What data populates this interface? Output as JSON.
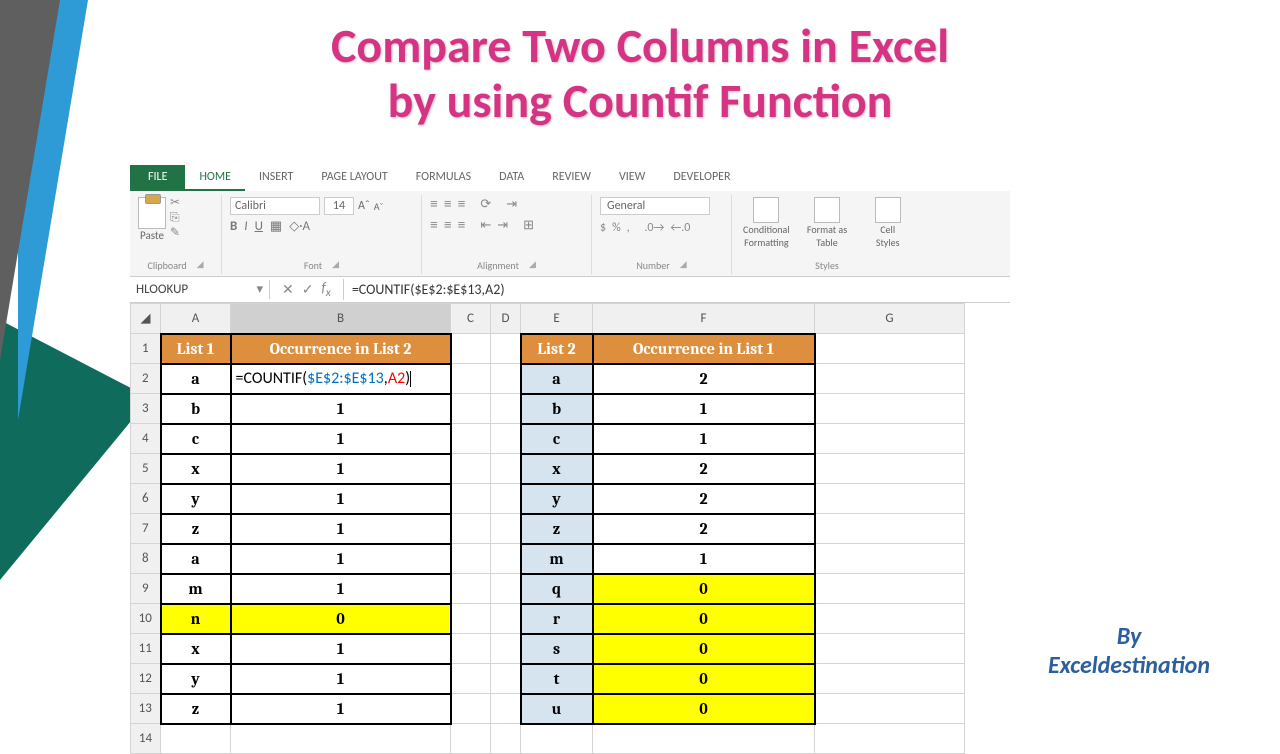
{
  "title_line1": "Compare Two Columns in Excel",
  "title_line2": "by using Countif Function",
  "byline1": "By",
  "byline2": "Exceldestination",
  "tabs": {
    "file": "FILE",
    "home": "HOME",
    "insert": "INSERT",
    "pagelayout": "PAGE LAYOUT",
    "formulas": "FORMULAS",
    "data": "DATA",
    "review": "REVIEW",
    "view": "VIEW",
    "developer": "DEVELOPER"
  },
  "ribbon": {
    "paste": "Paste",
    "clipboard": "Clipboard",
    "font_name": "Calibri",
    "font_size": "14",
    "font_group": "Font",
    "align_group": "Alignment",
    "number_format": "General",
    "number_group": "Number",
    "cond": "Conditional",
    "cond2": "Formatting",
    "fmt": "Format as",
    "fmt2": "Table",
    "cell": "Cell",
    "cell2": "Styles",
    "styles_group": "Styles"
  },
  "namebox": "HLOOKUP",
  "formula": "=COUNTIF($E$2:$E$13,A2)",
  "cols": [
    "A",
    "B",
    "C",
    "D",
    "E",
    "F",
    "G"
  ],
  "headers": {
    "list1": "List 1",
    "occ2": "Occurrence in List 2",
    "list2": "List 2",
    "occ1": "Occurrence in List 1"
  },
  "edit_formula": {
    "prefix": "=COUNTIF(",
    "range": "$E$2:$E$13",
    "comma": ",",
    "arg": "A2",
    "suffix": ")"
  },
  "table1": [
    {
      "r": 2,
      "l": "a",
      "o": "",
      "hl": false,
      "edit": true
    },
    {
      "r": 3,
      "l": "b",
      "o": "1",
      "hl": false
    },
    {
      "r": 4,
      "l": "c",
      "o": "1",
      "hl": false
    },
    {
      "r": 5,
      "l": "x",
      "o": "1",
      "hl": false
    },
    {
      "r": 6,
      "l": "y",
      "o": "1",
      "hl": false
    },
    {
      "r": 7,
      "l": "z",
      "o": "1",
      "hl": false
    },
    {
      "r": 8,
      "l": "a",
      "o": "1",
      "hl": false
    },
    {
      "r": 9,
      "l": "m",
      "o": "1",
      "hl": false
    },
    {
      "r": 10,
      "l": "n",
      "o": "0",
      "hl": true
    },
    {
      "r": 11,
      "l": "x",
      "o": "1",
      "hl": false
    },
    {
      "r": 12,
      "l": "y",
      "o": "1",
      "hl": false
    },
    {
      "r": 13,
      "l": "z",
      "o": "1",
      "hl": false
    }
  ],
  "table2": [
    {
      "r": 2,
      "l": "a",
      "o": "2",
      "hl": false
    },
    {
      "r": 3,
      "l": "b",
      "o": "1",
      "hl": false
    },
    {
      "r": 4,
      "l": "c",
      "o": "1",
      "hl": false
    },
    {
      "r": 5,
      "l": "x",
      "o": "2",
      "hl": false
    },
    {
      "r": 6,
      "l": "y",
      "o": "2",
      "hl": false
    },
    {
      "r": 7,
      "l": "z",
      "o": "2",
      "hl": false
    },
    {
      "r": 8,
      "l": "m",
      "o": "1",
      "hl": false
    },
    {
      "r": 9,
      "l": "q",
      "o": "0",
      "hl": true
    },
    {
      "r": 10,
      "l": "r",
      "o": "0",
      "hl": true
    },
    {
      "r": 11,
      "l": "s",
      "o": "0",
      "hl": true
    },
    {
      "r": 12,
      "l": "t",
      "o": "0",
      "hl": true
    },
    {
      "r": 13,
      "l": "u",
      "o": "0",
      "hl": true
    }
  ]
}
